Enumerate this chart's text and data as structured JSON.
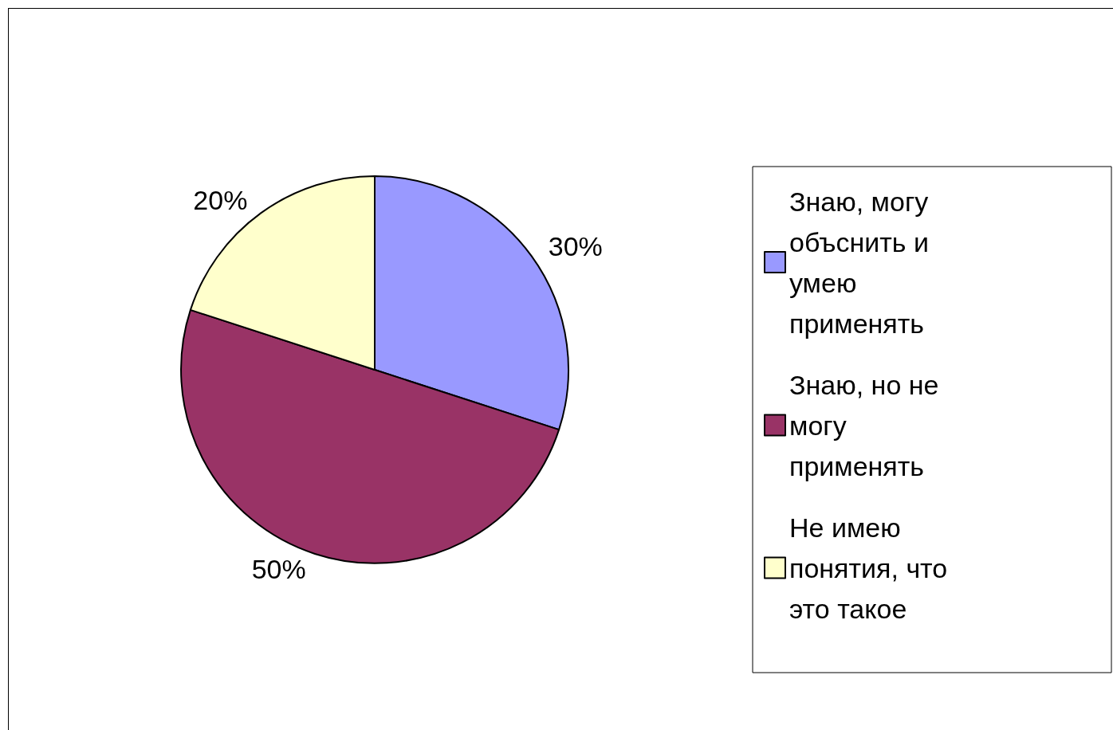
{
  "chart_data": {
    "type": "pie",
    "categories": [
      "Знаю, могу объснить и умею применять",
      "Знаю, но не могу применять",
      "Не имею понятия, что это такое"
    ],
    "values": [
      30,
      50,
      20
    ],
    "colors": [
      "#9999ff",
      "#993366",
      "#ffffcc"
    ],
    "value_labels": [
      "30%",
      "50%",
      "20%"
    ],
    "legend": "right"
  }
}
